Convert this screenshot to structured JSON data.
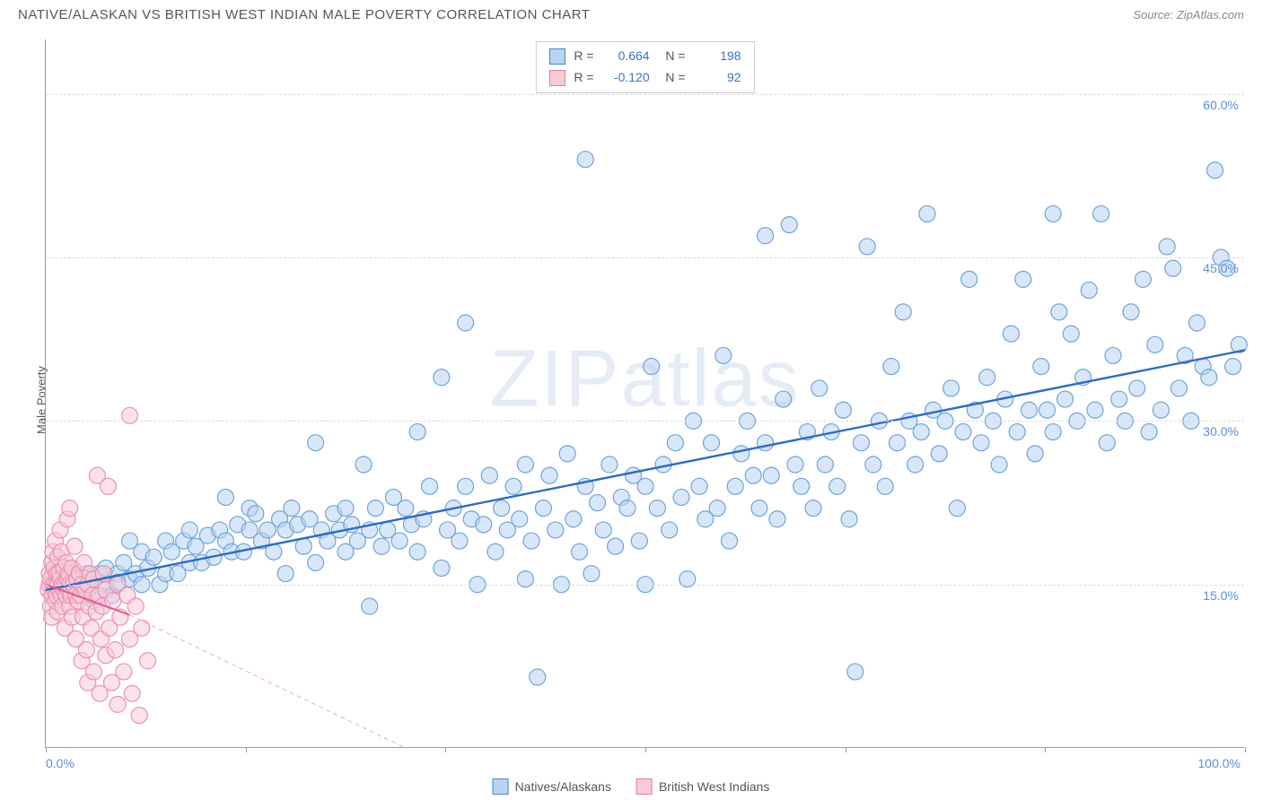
{
  "title": "NATIVE/ALASKAN VS BRITISH WEST INDIAN MALE POVERTY CORRELATION CHART",
  "source_label": "Source:",
  "source_value": "ZipAtlas.com",
  "ylabel": "Male Poverty",
  "watermark": "ZIPatlas",
  "chart": {
    "type": "scatter",
    "xlim": [
      0,
      100
    ],
    "ylim": [
      0,
      65
    ],
    "x_ticks": [
      0,
      16.67,
      33.33,
      50,
      66.67,
      83.33,
      100
    ],
    "x_tick_labels_visible": {
      "0": "0.0%",
      "100": "100.0%"
    },
    "y_gridlines": [
      15,
      30,
      45,
      60
    ],
    "y_tick_labels": [
      "15.0%",
      "30.0%",
      "45.0%",
      "60.0%"
    ],
    "grid_color": "#dddddd",
    "background_color": "#ffffff",
    "axis_color": "#999999",
    "marker_radius": 9,
    "marker_stroke_width": 1.2,
    "series": [
      {
        "name": "Natives/Alaskans",
        "R": "0.664",
        "N": "198",
        "fill": "#b8d4f0",
        "fill_opacity": 0.55,
        "stroke": "#6fa3db",
        "trend": {
          "x1": 0,
          "y1": 14.5,
          "x2": 100,
          "y2": 36.5,
          "color": "#2f6bc0",
          "width": 2.4,
          "dash": "none"
        },
        "points": [
          [
            1,
            14.8
          ],
          [
            1.5,
            15.5
          ],
          [
            2,
            14
          ],
          [
            2,
            16.5
          ],
          [
            2.5,
            15
          ],
          [
            3,
            15
          ],
          [
            3,
            15.8
          ],
          [
            3.5,
            14.5
          ],
          [
            3.5,
            16
          ],
          [
            4,
            13.5
          ],
          [
            4,
            15.5
          ],
          [
            4.5,
            16
          ],
          [
            5,
            15
          ],
          [
            5,
            16.5
          ],
          [
            5.5,
            14
          ],
          [
            6,
            16
          ],
          [
            6,
            15.2
          ],
          [
            6.5,
            17
          ],
          [
            7,
            15.5
          ],
          [
            7,
            19
          ],
          [
            7.5,
            16
          ],
          [
            8,
            15
          ],
          [
            8,
            18
          ],
          [
            8.5,
            16.5
          ],
          [
            9,
            17.5
          ],
          [
            9.5,
            15
          ],
          [
            10,
            16
          ],
          [
            10,
            19
          ],
          [
            10.5,
            18
          ],
          [
            11,
            16
          ],
          [
            11.5,
            19
          ],
          [
            12,
            17
          ],
          [
            12,
            20
          ],
          [
            12.5,
            18.5
          ],
          [
            13,
            17
          ],
          [
            13.5,
            19.5
          ],
          [
            14,
            17.5
          ],
          [
            14.5,
            20
          ],
          [
            15,
            19
          ],
          [
            15,
            23
          ],
          [
            15.5,
            18
          ],
          [
            16,
            20.5
          ],
          [
            16.5,
            18
          ],
          [
            17,
            20
          ],
          [
            17,
            22
          ],
          [
            17.5,
            21.5
          ],
          [
            18,
            19
          ],
          [
            18.5,
            20
          ],
          [
            19,
            18
          ],
          [
            19.5,
            21
          ],
          [
            20,
            16
          ],
          [
            20,
            20
          ],
          [
            20.5,
            22
          ],
          [
            21,
            20.5
          ],
          [
            21.5,
            18.5
          ],
          [
            22,
            21
          ],
          [
            22.5,
            17
          ],
          [
            22.5,
            28
          ],
          [
            23,
            20
          ],
          [
            23.5,
            19
          ],
          [
            24,
            21.5
          ],
          [
            24.5,
            20
          ],
          [
            25,
            18
          ],
          [
            25,
            22
          ],
          [
            25.5,
            20.5
          ],
          [
            26,
            19
          ],
          [
            26.5,
            26
          ],
          [
            27,
            13
          ],
          [
            27,
            20
          ],
          [
            27.5,
            22
          ],
          [
            28,
            18.5
          ],
          [
            28.5,
            20
          ],
          [
            29,
            23
          ],
          [
            29.5,
            19
          ],
          [
            30,
            22
          ],
          [
            30.5,
            20.5
          ],
          [
            31,
            18
          ],
          [
            31,
            29
          ],
          [
            31.5,
            21
          ],
          [
            32,
            24
          ],
          [
            33,
            34
          ],
          [
            33,
            16.5
          ],
          [
            33.5,
            20
          ],
          [
            34,
            22
          ],
          [
            34.5,
            19
          ],
          [
            35,
            39
          ],
          [
            35,
            24
          ],
          [
            35.5,
            21
          ],
          [
            36,
            15
          ],
          [
            36.5,
            20.5
          ],
          [
            37,
            25
          ],
          [
            37.5,
            18
          ],
          [
            38,
            22
          ],
          [
            38.5,
            20
          ],
          [
            39,
            24
          ],
          [
            39.5,
            21
          ],
          [
            40,
            15.5
          ],
          [
            40,
            26
          ],
          [
            40.5,
            19
          ],
          [
            41,
            6.5
          ],
          [
            41.5,
            22
          ],
          [
            42,
            25
          ],
          [
            42.5,
            20
          ],
          [
            43,
            15
          ],
          [
            43.5,
            27
          ],
          [
            44,
            21
          ],
          [
            44.5,
            18
          ],
          [
            45,
            54
          ],
          [
            45,
            24
          ],
          [
            45.5,
            16
          ],
          [
            46,
            22.5
          ],
          [
            46.5,
            20
          ],
          [
            47,
            26
          ],
          [
            47.5,
            18.5
          ],
          [
            48,
            23
          ],
          [
            48.5,
            22
          ],
          [
            49,
            25
          ],
          [
            49.5,
            19
          ],
          [
            50,
            24
          ],
          [
            50,
            15
          ],
          [
            50.5,
            35
          ],
          [
            51,
            22
          ],
          [
            51.5,
            26
          ],
          [
            52,
            20
          ],
          [
            52.5,
            28
          ],
          [
            53,
            23
          ],
          [
            53.5,
            15.5
          ],
          [
            54,
            30
          ],
          [
            54.5,
            24
          ],
          [
            55,
            21
          ],
          [
            55.5,
            28
          ],
          [
            56,
            22
          ],
          [
            56.5,
            36
          ],
          [
            57,
            19
          ],
          [
            57.5,
            24
          ],
          [
            58,
            27
          ],
          [
            58.5,
            30
          ],
          [
            59,
            25
          ],
          [
            59.5,
            22
          ],
          [
            60,
            47
          ],
          [
            60,
            28
          ],
          [
            60.5,
            25
          ],
          [
            61,
            21
          ],
          [
            61.5,
            32
          ],
          [
            62,
            48
          ],
          [
            62.5,
            26
          ],
          [
            63,
            24
          ],
          [
            63.5,
            29
          ],
          [
            64,
            22
          ],
          [
            64.5,
            33
          ],
          [
            65,
            26
          ],
          [
            65.5,
            29
          ],
          [
            66,
            24
          ],
          [
            66.5,
            31
          ],
          [
            67,
            21
          ],
          [
            67.5,
            7
          ],
          [
            68,
            28
          ],
          [
            68.5,
            46
          ],
          [
            69,
            26
          ],
          [
            69.5,
            30
          ],
          [
            70,
            24
          ],
          [
            70.5,
            35
          ],
          [
            71,
            28
          ],
          [
            71.5,
            40
          ],
          [
            72,
            30
          ],
          [
            72.5,
            26
          ],
          [
            73,
            29
          ],
          [
            73.5,
            49
          ],
          [
            74,
            31
          ],
          [
            74.5,
            27
          ],
          [
            75,
            30
          ],
          [
            75.5,
            33
          ],
          [
            76,
            22
          ],
          [
            76.5,
            29
          ],
          [
            77,
            43
          ],
          [
            77.5,
            31
          ],
          [
            78,
            28
          ],
          [
            78.5,
            34
          ],
          [
            79,
            30
          ],
          [
            79.5,
            26
          ],
          [
            80,
            32
          ],
          [
            80.5,
            38
          ],
          [
            81,
            29
          ],
          [
            81.5,
            43
          ],
          [
            82,
            31
          ],
          [
            82.5,
            27
          ],
          [
            83,
            35
          ],
          [
            83.5,
            31
          ],
          [
            84,
            29
          ],
          [
            84,
            49
          ],
          [
            84.5,
            40
          ],
          [
            85,
            32
          ],
          [
            85.5,
            38
          ],
          [
            86,
            30
          ],
          [
            86.5,
            34
          ],
          [
            87,
            42
          ],
          [
            87.5,
            31
          ],
          [
            88,
            49
          ],
          [
            88.5,
            28
          ],
          [
            89,
            36
          ],
          [
            89.5,
            32
          ],
          [
            90,
            30
          ],
          [
            90.5,
            40
          ],
          [
            91,
            33
          ],
          [
            91.5,
            43
          ],
          [
            92,
            29
          ],
          [
            92.5,
            37
          ],
          [
            93,
            31
          ],
          [
            93.5,
            46
          ],
          [
            94,
            44
          ],
          [
            94.5,
            33
          ],
          [
            95,
            36
          ],
          [
            95.5,
            30
          ],
          [
            96,
            39
          ],
          [
            96.5,
            35
          ],
          [
            97,
            34
          ],
          [
            97.5,
            53
          ],
          [
            98,
            45
          ],
          [
            98.5,
            44
          ],
          [
            99,
            35
          ],
          [
            99.5,
            37
          ]
        ]
      },
      {
        "name": "British West Indians",
        "R": "-0.120",
        "N": "92",
        "fill": "#f7cad8",
        "fill_opacity": 0.55,
        "stroke": "#e892af",
        "trend": {
          "x1": 0,
          "y1": 15,
          "x2": 7,
          "y2": 12.2,
          "color": "#e05a8a",
          "width": 2,
          "dash": "none"
        },
        "trend_ext": {
          "x1": 7,
          "y1": 12.2,
          "x2": 30,
          "y2": 0,
          "color": "#f0a8c0",
          "width": 1,
          "dash": "5,4"
        },
        "points": [
          [
            0.2,
            14.5
          ],
          [
            0.3,
            15
          ],
          [
            0.3,
            16
          ],
          [
            0.4,
            13
          ],
          [
            0.4,
            15.5
          ],
          [
            0.5,
            14
          ],
          [
            0.5,
            17
          ],
          [
            0.5,
            12
          ],
          [
            0.6,
            15
          ],
          [
            0.6,
            18
          ],
          [
            0.7,
            14.5
          ],
          [
            0.7,
            16.5
          ],
          [
            0.8,
            13.5
          ],
          [
            0.8,
            15
          ],
          [
            0.8,
            19
          ],
          [
            0.9,
            14
          ],
          [
            0.9,
            16
          ],
          [
            1,
            15
          ],
          [
            1,
            17.5
          ],
          [
            1,
            12.5
          ],
          [
            1.1,
            14.5
          ],
          [
            1.1,
            16
          ],
          [
            1.2,
            15.5
          ],
          [
            1.2,
            20
          ],
          [
            1.3,
            14
          ],
          [
            1.3,
            18
          ],
          [
            1.4,
            15
          ],
          [
            1.4,
            13
          ],
          [
            1.5,
            16.5
          ],
          [
            1.5,
            14.5
          ],
          [
            1.6,
            15
          ],
          [
            1.6,
            11
          ],
          [
            1.7,
            17
          ],
          [
            1.7,
            14
          ],
          [
            1.8,
            15.5
          ],
          [
            1.8,
            21
          ],
          [
            1.9,
            14.5
          ],
          [
            1.9,
            16
          ],
          [
            2,
            13
          ],
          [
            2,
            15
          ],
          [
            2,
            22
          ],
          [
            2.1,
            14
          ],
          [
            2.2,
            16.5
          ],
          [
            2.2,
            12
          ],
          [
            2.3,
            15
          ],
          [
            2.4,
            18.5
          ],
          [
            2.5,
            14
          ],
          [
            2.5,
            10
          ],
          [
            2.6,
            15.5
          ],
          [
            2.7,
            13.5
          ],
          [
            2.8,
            16
          ],
          [
            2.9,
            14
          ],
          [
            3,
            15
          ],
          [
            3,
            8
          ],
          [
            3.1,
            12
          ],
          [
            3.2,
            17
          ],
          [
            3.3,
            14.5
          ],
          [
            3.4,
            9
          ],
          [
            3.5,
            15
          ],
          [
            3.5,
            6
          ],
          [
            3.6,
            13
          ],
          [
            3.7,
            16
          ],
          [
            3.8,
            11
          ],
          [
            3.9,
            14
          ],
          [
            4,
            7
          ],
          [
            4,
            15.5
          ],
          [
            4.2,
            12.5
          ],
          [
            4.3,
            25
          ],
          [
            4.4,
            14
          ],
          [
            4.5,
            5
          ],
          [
            4.6,
            10
          ],
          [
            4.7,
            13
          ],
          [
            4.8,
            16
          ],
          [
            5,
            8.5
          ],
          [
            5,
            14.5
          ],
          [
            5.2,
            24
          ],
          [
            5.3,
            11
          ],
          [
            5.5,
            6
          ],
          [
            5.6,
            13.5
          ],
          [
            5.8,
            9
          ],
          [
            6,
            15
          ],
          [
            6,
            4
          ],
          [
            6.2,
            12
          ],
          [
            6.5,
            7
          ],
          [
            6.8,
            14
          ],
          [
            7,
            10
          ],
          [
            7,
            30.5
          ],
          [
            7.2,
            5
          ],
          [
            7.5,
            13
          ],
          [
            7.8,
            3
          ],
          [
            8,
            11
          ],
          [
            8.5,
            8
          ]
        ]
      }
    ]
  },
  "legend": {
    "series1": "Natives/Alaskans",
    "series2": "British West Indians"
  }
}
